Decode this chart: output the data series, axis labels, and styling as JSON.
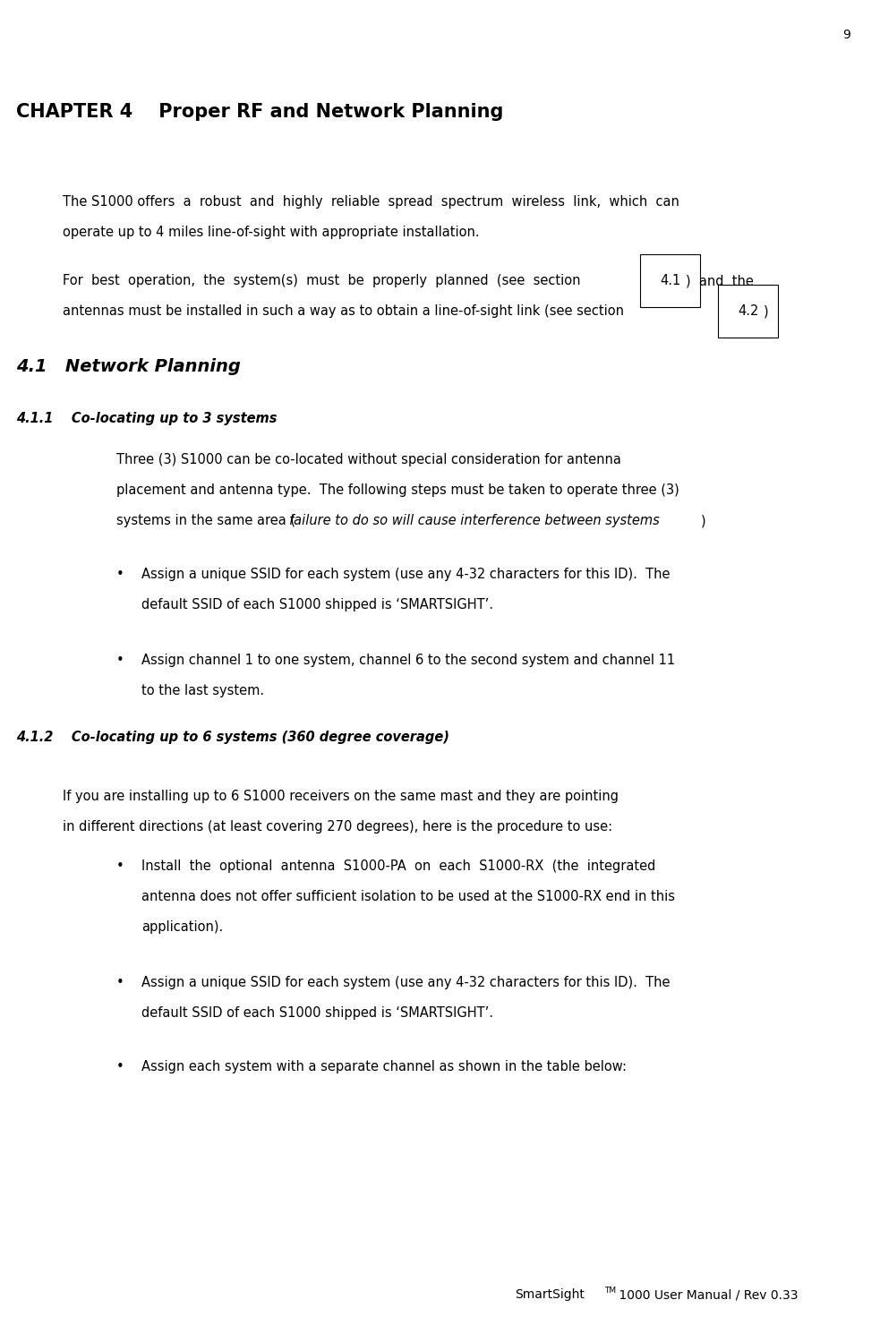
{
  "page_number": "9",
  "chapter_title": "CHAPTER 4    Proper RF and Network Planning",
  "para1_line1": "The S1000 offers  a  robust  and  highly  reliable  spread  spectrum  wireless  link,  which  can",
  "para1_line2": "operate up to 4 miles line-of-sight with appropriate installation.",
  "para2_line1a": "For  best  operation,  the  system(s)  must  be  properly  planned  (see  section ",
  "para2_41": "4.1",
  "para2_line1b": ")  and  the",
  "para2_line2a": "antennas must be installed in such a way as to obtain a line-of-sight link (see section ",
  "para2_42": "4.2",
  "para2_line2b": ")",
  "section41": "4.1   Network Planning",
  "section411": "4.1.1    Co-locating up to 3 systems",
  "para411_line1": "Three (3) S1000 can be co-located without special consideration for antenna",
  "para411_line2": "placement and antenna type.  The following steps must be taken to operate three (3)",
  "para411_line3a": "systems in the same area (",
  "para411_italic": "failure to do so will cause interference between systems",
  "para411_line3b": ")",
  "bullet1_411_line1": "Assign a unique SSID for each system (use any 4-32 characters for this ID).  The",
  "bullet1_411_line2": "default SSID of each S1000 shipped is ‘SMARTSIGHT’.",
  "bullet2_411_line1": "Assign channel 1 to one system, channel 6 to the second system and channel 11",
  "bullet2_411_line2": "to the last system.",
  "section412": "4.1.2    Co-locating up to 6 systems (360 degree coverage)",
  "para412_line1": "If you are installing up to 6 S1000 receivers on the same mast and they are pointing",
  "para412_line2": "in different directions (at least covering 270 degrees), here is the procedure to use:",
  "bullet1_412_line1": "Install  the  optional  antenna  S1000-PA  on  each  S1000-RX  (the  integrated",
  "bullet1_412_line2": "antenna does not offer sufficient isolation to be used at the S1000-RX end in this",
  "bullet1_412_line3": "application).",
  "bullet2_412_line1": "Assign a unique SSID for each system (use any 4-32 characters for this ID).  The",
  "bullet2_412_line2": "default SSID of each S1000 shipped is ‘SMARTSIGHT’.",
  "bullet3_412": "Assign each system with a separate channel as shown in the table below:",
  "footer_pre": "SmartSight",
  "footer_tm": "TM",
  "footer_post": " 1000 User Manual / Rev 0.33",
  "bg_color": "#ffffff",
  "text_color": "#000000"
}
